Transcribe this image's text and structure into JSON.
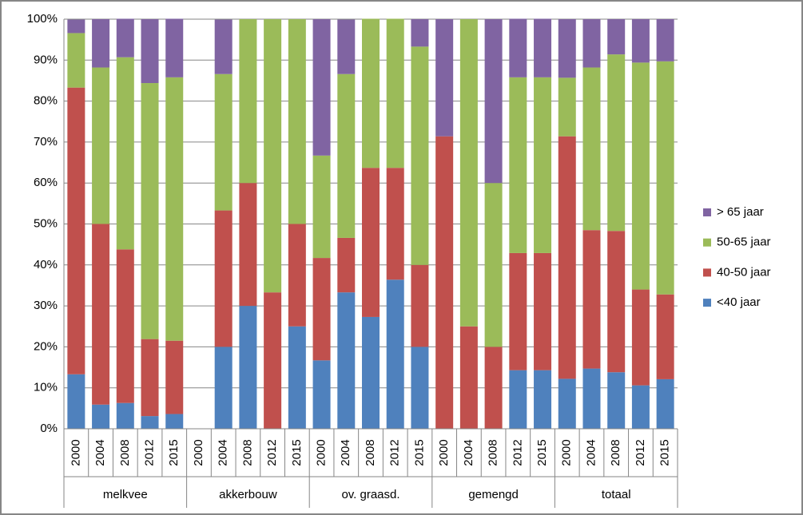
{
  "chart_data": {
    "type": "stacked_bar",
    "categories": [
      "2000",
      "2004",
      "2008",
      "2012",
      "2015",
      "2000",
      "2004",
      "2008",
      "2012",
      "2015",
      "2000",
      "2004",
      "2008",
      "2012",
      "2015",
      "2000",
      "2004",
      "2008",
      "2012",
      "2015",
      "2000",
      "2004",
      "2008",
      "2012",
      "2015"
    ],
    "groups": [
      "melkvee",
      "akkerbouw",
      "ov. graasd.",
      "gemengd",
      "totaal"
    ],
    "series": [
      {
        "name": "<40 jaar",
        "color": "#4f81bd",
        "values": [
          13.3,
          5.9,
          6.3,
          3.1,
          3.6,
          0,
          20,
          30,
          0,
          25,
          16.7,
          33.3,
          27.3,
          36.4,
          20,
          0,
          0,
          0,
          14.3,
          14.3,
          12.2,
          14.7,
          13.8,
          10.6,
          12.1
        ]
      },
      {
        "name": "40-50 jaar",
        "color": "#c0504d",
        "values": [
          70,
          44.1,
          37.5,
          18.8,
          17.9,
          0,
          33.3,
          30,
          33.3,
          25,
          25,
          13.3,
          36.4,
          27.3,
          20,
          71.4,
          25,
          20,
          28.6,
          28.6,
          59.2,
          33.8,
          34.5,
          23.4,
          20.7
        ]
      },
      {
        "name": "50-65 jaar",
        "color": "#9bbb59",
        "values": [
          13.3,
          38.2,
          46.9,
          62.5,
          64.3,
          0,
          33.3,
          40,
          66.7,
          50,
          25,
          40,
          36.4,
          36.4,
          53.3,
          0,
          75,
          40,
          42.9,
          42.9,
          14.3,
          39.7,
          43.1,
          55.4,
          56.9
        ]
      },
      {
        "name": "> 65 jaar",
        "color": "#8064a2",
        "values": [
          3.3,
          11.8,
          9.4,
          15.6,
          14.3,
          0,
          13.3,
          0,
          0,
          0,
          33.3,
          13.3,
          0,
          0,
          6.7,
          28.6,
          0,
          40,
          14.3,
          14.3,
          14.3,
          11.8,
          8.6,
          10.6,
          10.3
        ]
      }
    ],
    "ylim": [
      0,
      100
    ],
    "yticks": [
      {
        "value": 0,
        "label": "0%"
      },
      {
        "value": 10,
        "label": "10%"
      },
      {
        "value": 20,
        "label": "20%"
      },
      {
        "value": 30,
        "label": "30%"
      },
      {
        "value": 40,
        "label": "40%"
      },
      {
        "value": 50,
        "label": "50%"
      },
      {
        "value": 60,
        "label": "60%"
      },
      {
        "value": 70,
        "label": "70%"
      },
      {
        "value": 80,
        "label": "80%"
      },
      {
        "value": 90,
        "label": "90%"
      },
      {
        "value": 100,
        "label": "100%"
      }
    ],
    "grid": true,
    "legend": "right"
  }
}
